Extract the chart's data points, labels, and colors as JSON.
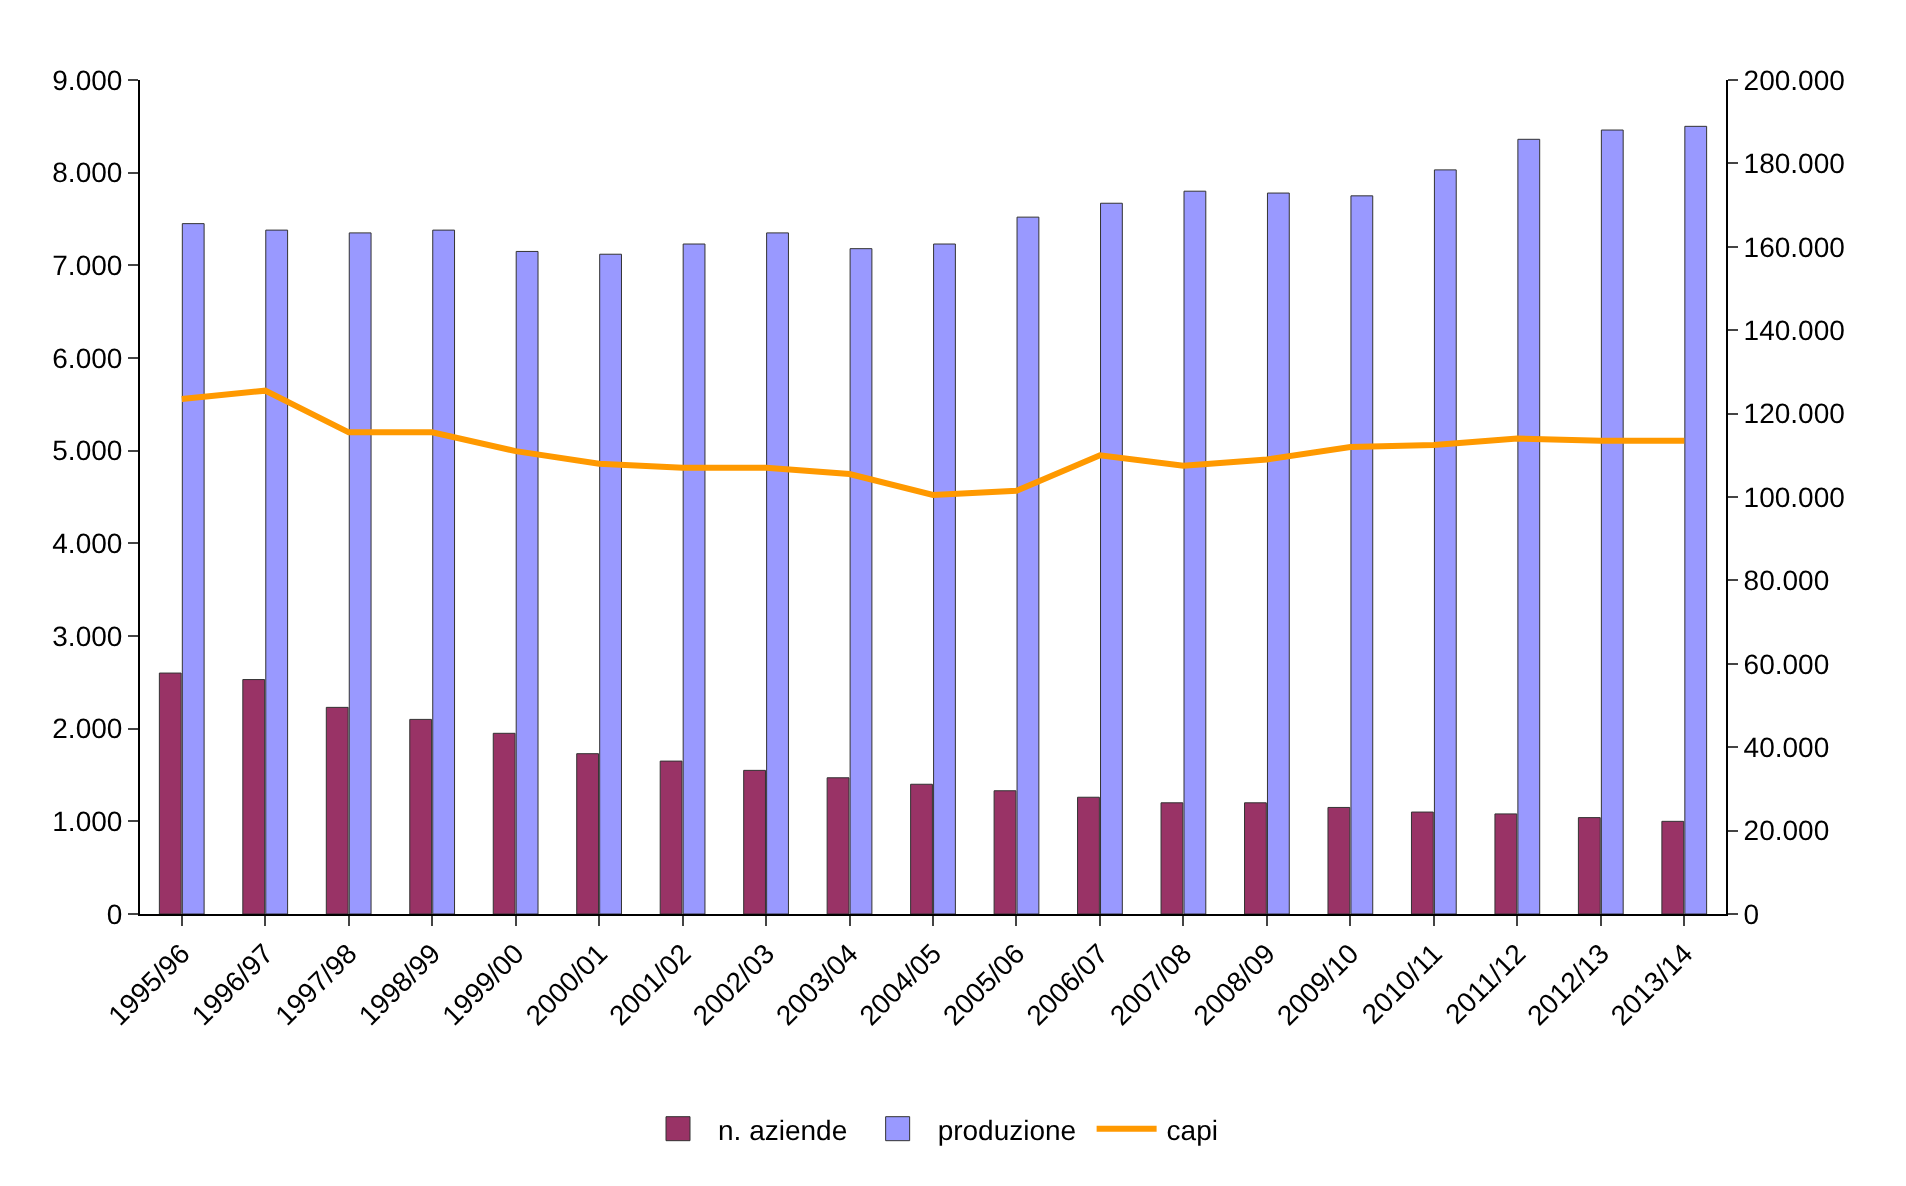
{
  "chart_data": {
    "type": "bar",
    "categories": [
      "1995/96",
      "1996/97",
      "1997/98",
      "1998/99",
      "1999/00",
      "2000/01",
      "2001/02",
      "2002/03",
      "2003/04",
      "2004/05",
      "2005/06",
      "2006/07",
      "2007/08",
      "2008/09",
      "2009/10",
      "2010/11",
      "2011/12",
      "2012/13",
      "2013/14"
    ],
    "series": [
      {
        "name": "n. aziende",
        "color": "#993366",
        "values": [
          2600,
          2530,
          2230,
          2100,
          1950,
          1730,
          1650,
          1550,
          1470,
          1400,
          1330,
          1260,
          1200,
          1200,
          1150,
          1100,
          1080,
          1040,
          1000
        ]
      },
      {
        "name": "produzione",
        "color": "#9999ff",
        "values": [
          7450,
          7380,
          7350,
          7380,
          7150,
          7120,
          7230,
          7350,
          7180,
          7230,
          7520,
          7670,
          7800,
          7780,
          7750,
          8030,
          8360,
          8460,
          8500
        ]
      },
      {
        "name": "capi",
        "color": "#ff9900",
        "type": "line",
        "axis": "y2",
        "values": [
          123500,
          125500,
          115500,
          115500,
          111000,
          108000,
          107000,
          107000,
          105500,
          100500,
          101500,
          110000,
          107500,
          109000,
          112000,
          112500,
          114000,
          113500,
          113500
        ]
      }
    ],
    "ylim": [
      0,
      9000
    ],
    "yticks": [
      0,
      {
        "value": 1000,
        "label": "1.000"
      },
      {
        "value": 2000,
        "label": "2.000"
      },
      {
        "value": 3000,
        "label": "3.000"
      },
      {
        "value": 4000,
        "label": "4.000"
      },
      {
        "value": 5000,
        "label": "5.000"
      },
      {
        "value": 6000,
        "label": "6.000"
      },
      {
        "value": 7000,
        "label": "7.000"
      },
      {
        "value": 8000,
        "label": "8.000"
      },
      {
        "value": 9000,
        "label": "9.000"
      }
    ],
    "y2lim": [
      0,
      200000
    ],
    "y2ticks": [
      0,
      {
        "value": 20000,
        "label": "20.000"
      },
      {
        "value": 40000,
        "label": "40.000"
      },
      {
        "value": 60000,
        "label": "60.000"
      },
      {
        "value": 80000,
        "label": "80.000"
      },
      {
        "value": 100000,
        "label": "100.000"
      },
      {
        "value": 120000,
        "label": "120.000"
      },
      {
        "value": 140000,
        "label": "140.000"
      },
      {
        "value": 160000,
        "label": "160.000"
      },
      {
        "value": 180000,
        "label": "180.000"
      },
      {
        "value": 200000,
        "label": "200.000"
      }
    ],
    "legend": "bottom",
    "marker": "none",
    "line_style": "solid"
  }
}
